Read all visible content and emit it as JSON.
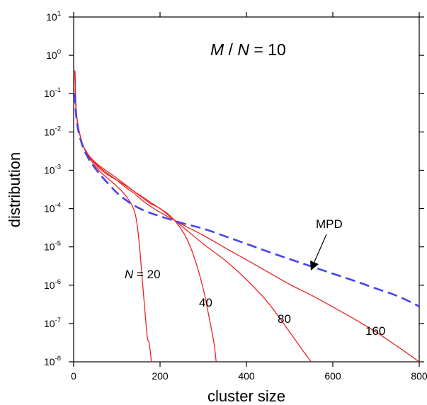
{
  "chart_data": {
    "type": "line",
    "title_parts": {
      "m": "M",
      "slash": " / ",
      "n": "N",
      "rest": " = 10"
    },
    "xlabel": "cluster size",
    "ylabel": "distribution",
    "xlim": [
      0,
      800
    ],
    "ylim": [
      1e-08,
      10
    ],
    "yscale": "log",
    "xticks": [
      0,
      200,
      400,
      600,
      800
    ],
    "yticks": [
      {
        "value": 10,
        "base": "10",
        "exp": "1"
      },
      {
        "value": 1,
        "base": "10",
        "exp": "0"
      },
      {
        "value": 0.1,
        "base": "10",
        "exp": "-1"
      },
      {
        "value": 0.01,
        "base": "10",
        "exp": "-2"
      },
      {
        "value": 0.001,
        "base": "10",
        "exp": "-3"
      },
      {
        "value": 0.0001,
        "base": "10",
        "exp": "-4"
      },
      {
        "value": 1e-05,
        "base": "10",
        "exp": "-5"
      },
      {
        "value": 1e-06,
        "base": "10",
        "exp": "-6"
      },
      {
        "value": 1e-07,
        "base": "10",
        "exp": "-7"
      },
      {
        "value": 1e-08,
        "base": "10",
        "exp": "-8"
      }
    ],
    "grid": false,
    "series": [
      {
        "label": "20",
        "label_prefix": "N",
        "label_eq": " = ",
        "color": "#ee2222",
        "dash": "solid",
        "x": [
          3,
          5,
          10,
          20,
          30,
          40,
          60,
          80,
          100,
          120,
          140,
          150,
          160,
          170,
          175,
          180
        ],
        "y": [
          0.4,
          0.05,
          0.015,
          0.005,
          0.0028,
          0.0018,
          0.00095,
          0.0006,
          0.00038,
          0.00022,
          9e-05,
          2e-05,
          1e-06,
          5e-08,
          3e-08,
          1e-08
        ]
      },
      {
        "label": "40",
        "color": "#ee2222",
        "dash": "solid",
        "x": [
          3,
          5,
          10,
          20,
          30,
          40,
          60,
          80,
          100,
          120,
          140,
          160,
          180,
          200,
          220,
          240,
          260,
          280,
          300,
          315,
          325,
          330
        ],
        "y": [
          0.4,
          0.05,
          0.015,
          0.005,
          0.0029,
          0.002,
          0.0011,
          0.00075,
          0.00055,
          0.0004,
          0.00028,
          0.0002,
          0.00014,
          0.0001,
          7e-05,
          4e-05,
          1.8e-05,
          5e-06,
          8e-07,
          1.2e-07,
          3e-08,
          1e-08
        ]
      },
      {
        "label": "80",
        "color": "#ee2222",
        "dash": "solid",
        "x": [
          3,
          5,
          10,
          20,
          30,
          40,
          60,
          80,
          100,
          120,
          140,
          160,
          180,
          200,
          250,
          300,
          350,
          400,
          450,
          500,
          530,
          550
        ],
        "y": [
          0.4,
          0.05,
          0.015,
          0.005,
          0.003,
          0.0021,
          0.0013,
          0.0009,
          0.00062,
          0.00042,
          0.00028,
          0.00019,
          0.00013,
          0.0001,
          3.5e-05,
          1.2e-05,
          4.5e-06,
          1.4e-06,
          3.5e-07,
          6e-08,
          2e-08,
          1e-08
        ]
      },
      {
        "label": "160",
        "color": "#ee2222",
        "dash": "solid",
        "x": [
          3,
          5,
          10,
          20,
          30,
          40,
          60,
          80,
          100,
          120,
          140,
          160,
          180,
          200,
          250,
          300,
          350,
          400,
          450,
          500,
          550,
          600,
          650,
          700,
          750,
          800
        ],
        "y": [
          0.4,
          0.05,
          0.015,
          0.005,
          0.0029,
          0.002,
          0.0012,
          0.0008,
          0.00055,
          0.00036,
          0.00025,
          0.00016,
          0.00011,
          8e-05,
          3.9e-05,
          2e-05,
          9.5e-06,
          4.6e-06,
          2.2e-06,
          1.05e-06,
          5.5e-07,
          2.7e-07,
          1.3e-07,
          6e-08,
          2.5e-08,
          1e-08
        ]
      },
      {
        "label": "MPD",
        "color": "#4444ee",
        "dash": "dashed",
        "x": [
          3,
          5,
          10,
          20,
          30,
          40,
          60,
          80,
          100,
          120,
          140,
          160,
          180,
          200,
          250,
          300,
          350,
          400,
          450,
          500,
          550,
          600,
          650,
          700,
          750,
          800
        ],
        "y": [
          0.1,
          0.035,
          0.012,
          0.0045,
          0.0025,
          0.0016,
          0.0008,
          0.00045,
          0.00026,
          0.00017,
          0.00012,
          9.2e-05,
          7.5e-05,
          6.3e-05,
          4.2e-05,
          3e-05,
          1.9e-05,
          1.2e-05,
          7.5e-06,
          4.8e-06,
          3.1e-06,
          2e-06,
          1.3e-06,
          8.2e-07,
          5.2e-07,
          2.8e-07
        ]
      }
    ]
  }
}
